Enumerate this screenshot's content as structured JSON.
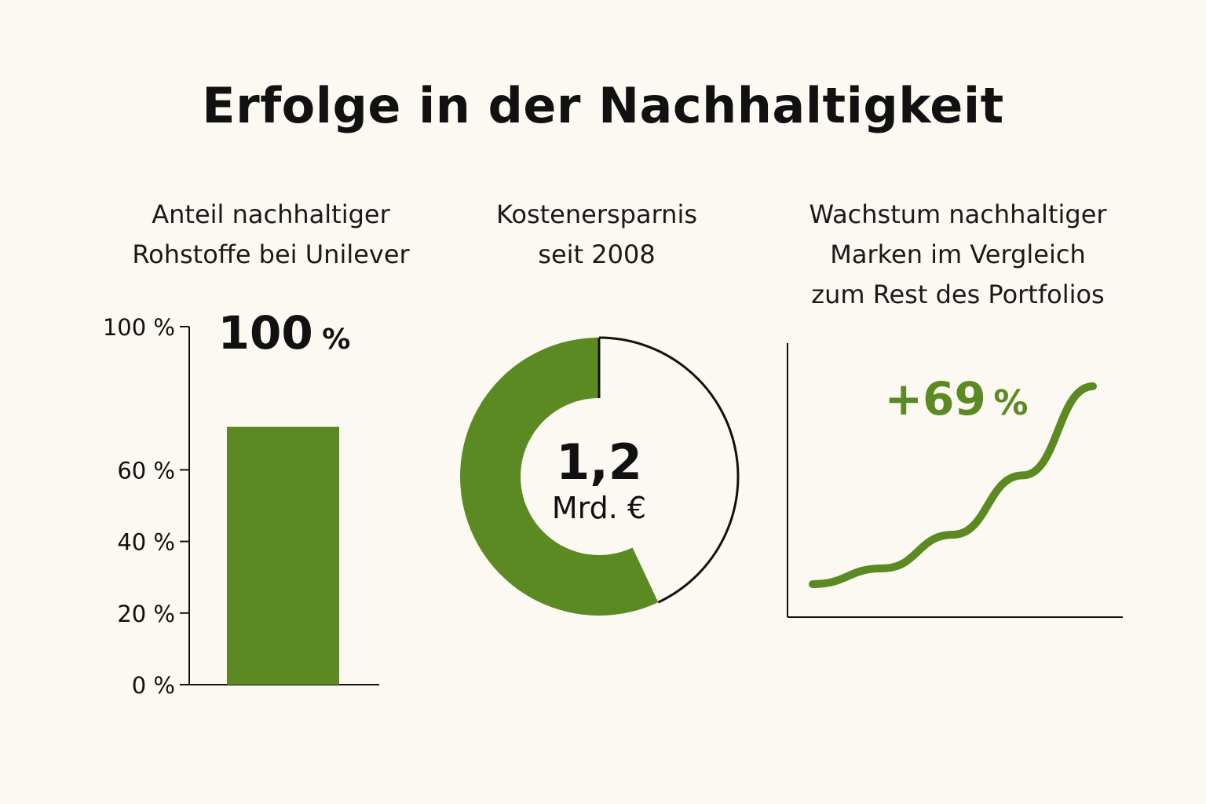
{
  "title": "Erfolge in der Nachhaltigkeit",
  "colors": {
    "accent": "#5b8a22",
    "background": "#fcf9f2",
    "text": "#111111"
  },
  "panels": {
    "bar": {
      "title_lines": [
        "Anteil nachhaltiger",
        "Rohstoffe bei Unilever"
      ]
    },
    "donut": {
      "title_lines": [
        "Kostenersparnis",
        "seit 2008"
      ]
    },
    "growth": {
      "title_lines": [
        "Wachstum nachhaltiger",
        "Marken im Vergleich",
        "zum Rest des Portfolios"
      ]
    }
  },
  "chart_data": [
    {
      "type": "bar",
      "title": "Anteil nachhaltiger Rohstoffe bei Unilever",
      "categories": [
        ""
      ],
      "values": [
        72
      ],
      "ylim": [
        0,
        100
      ],
      "yticks": [
        {
          "value": 0,
          "label": "0 %"
        },
        {
          "value": 20,
          "label": "20 %"
        },
        {
          "value": 40,
          "label": "40 %"
        },
        {
          "value": 60,
          "label": "60 %"
        },
        {
          "value": 100,
          "label": "100 %"
        }
      ],
      "annotation": {
        "number": "100",
        "unit": "%"
      }
    },
    {
      "type": "pie",
      "title": "Kostenersparnis seit 2008",
      "filled_fraction": 0.57,
      "center_value": "1,2",
      "center_unit": "Mrd. €"
    },
    {
      "type": "line",
      "title": "Wachstum nachhaltiger Marken im Vergleich zum Rest des Portfolios",
      "annotation": {
        "number": "+69",
        "unit": "%"
      },
      "x": [
        0,
        0.25,
        0.5,
        0.75,
        1.0
      ],
      "y": [
        0,
        0.08,
        0.25,
        0.55,
        1.0
      ]
    }
  ]
}
